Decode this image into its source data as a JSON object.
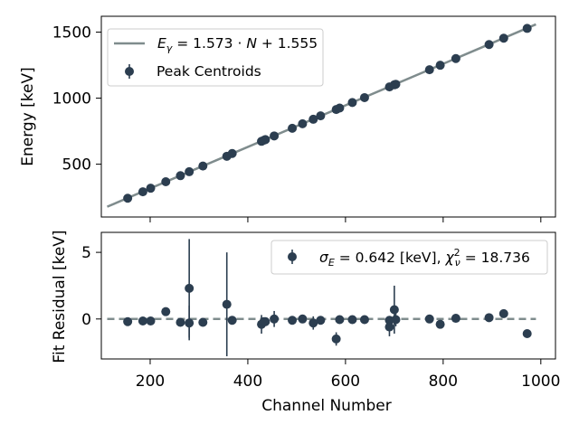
{
  "chart_data": [
    {
      "type": "scatter",
      "ylabel": "Energy [keV]",
      "xlim": [
        100,
        1030
      ],
      "ylim": [
        100,
        1620
      ],
      "yticks": [
        500,
        1000,
        1500
      ],
      "xticks": [
        200,
        400,
        600,
        800,
        1000
      ],
      "grid": false,
      "legend_position": "upper-left",
      "fit": {
        "slope": 1.573,
        "intercept": 1.555,
        "x_range": [
          112,
          990
        ],
        "label": "E_γ = 1.573 · N + 1.555",
        "color": "#7f8c8d"
      },
      "series": [
        {
          "name": "Peak Centroids",
          "color": "#2c3e50",
          "x": [
            154,
            185,
            201,
            232,
            262,
            280,
            308,
            357,
            368,
            428,
            433,
            436,
            454,
            491,
            512,
            534,
            549,
            581,
            588,
            614,
            639,
            690,
            700,
            703,
            772,
            794,
            826,
            894,
            924,
            972
          ],
          "y": [
            242,
            291,
            318,
            367,
            413,
            443,
            486,
            560,
            581,
            673,
            681,
            686,
            714,
            772,
            806,
            840,
            866,
            914,
            925,
            967,
            1004,
            1085,
            1101,
            1105,
            1215,
            1249,
            1300,
            1406,
            1454,
            1528
          ]
        }
      ]
    },
    {
      "type": "scatter",
      "xlabel": "Channel Number",
      "ylabel": "Fit Residual [keV]",
      "xlim": [
        100,
        1030
      ],
      "ylim": [
        -3.0,
        6.5
      ],
      "yticks": [
        0,
        5
      ],
      "xticks": [
        200,
        400,
        600,
        800,
        1000
      ],
      "grid": false,
      "legend_position": "upper-right",
      "zero_line": {
        "y": 0,
        "x_range": [
          112,
          990
        ],
        "color": "#7f8c8d",
        "style": "dashed"
      },
      "series": [
        {
          "name": "σ_E = 0.642 [keV], χ²_ν = 18.736",
          "color": "#2c3e50",
          "x": [
            154,
            185,
            201,
            232,
            262,
            280,
            280,
            308,
            357,
            368,
            428,
            433,
            436,
            454,
            491,
            512,
            534,
            549,
            581,
            588,
            614,
            639,
            690,
            690,
            700,
            703,
            772,
            794,
            826,
            894,
            924,
            972
          ],
          "y": [
            -0.2,
            -0.15,
            -0.15,
            0.55,
            -0.25,
            2.3,
            -0.3,
            -0.25,
            1.1,
            -0.1,
            -0.4,
            -0.2,
            -0.2,
            0.0,
            -0.1,
            0.0,
            -0.3,
            -0.1,
            -1.5,
            -0.05,
            -0.05,
            -0.05,
            -0.1,
            -0.6,
            0.7,
            -0.05,
            0.0,
            -0.4,
            0.05,
            0.1,
            0.4,
            -1.1
          ],
          "yerr": [
            0,
            0,
            0,
            0,
            0,
            3.7,
            1.3,
            0,
            3.9,
            0,
            0.7,
            0,
            0,
            0.6,
            0,
            0,
            0.5,
            0,
            0.5,
            0,
            0,
            0,
            0,
            0.7,
            1.8,
            0.5,
            0,
            0,
            0,
            0,
            0,
            0
          ]
        }
      ]
    }
  ],
  "legend_labels": {
    "fit_line": "E_γ = 1.573 · N + 1.555",
    "centroids": "Peak Centroids",
    "residuals": "σ_E = 0.642 [keV], χ²_ν = 18.736"
  }
}
